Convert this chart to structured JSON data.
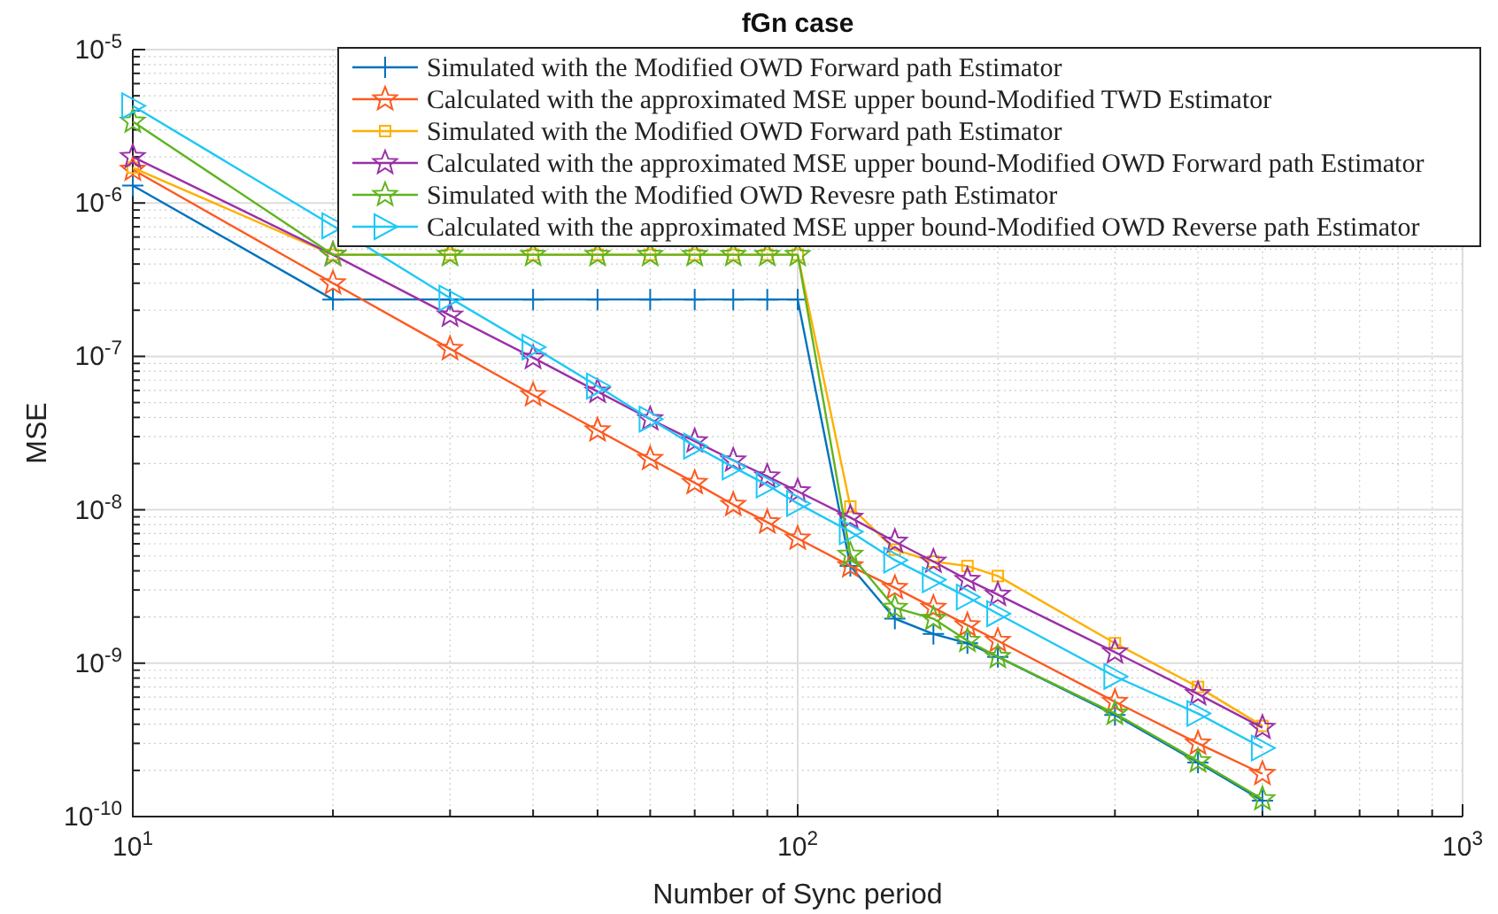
{
  "chart_data": {
    "type": "line",
    "title": "fGn case",
    "xlabel": "Number of Sync period",
    "ylabel": "MSE",
    "x": [
      10,
      20,
      30,
      40,
      50,
      60,
      70,
      80,
      90,
      100,
      120,
      140,
      160,
      180,
      200,
      300,
      400,
      500
    ],
    "series": [
      {
        "name": "Simulated with the Modified OWD Forward path Estimator",
        "color": "#0072bd",
        "marker": "cross",
        "values": [
          1.3e-06,
          2.35e-07,
          2.35e-07,
          2.35e-07,
          2.35e-07,
          2.35e-07,
          2.35e-07,
          2.35e-07,
          2.35e-07,
          2.35e-07,
          4.3e-09,
          1.95e-09,
          1.55e-09,
          1.35e-09,
          1.1e-09,
          4.6e-10,
          2.25e-10,
          1.27e-10
        ]
      },
      {
        "name": "Calculated with the approximated MSE upper bound-Modified TWD Estimator",
        "color": "#fc5a20",
        "marker": "star",
        "values": [
          1.65e-06,
          3e-07,
          1.12e-07,
          5.6e-08,
          3.3e-08,
          2.15e-08,
          1.5e-08,
          1.08e-08,
          8.3e-09,
          6.5e-09,
          4.3e-09,
          3.1e-09,
          2.3e-09,
          1.77e-09,
          1.4e-09,
          5.6e-10,
          3e-10,
          1.9e-10
        ]
      },
      {
        "name": "Simulated with the Modified OWD Forward path Estimator",
        "color": "#ffb000",
        "marker": "square",
        "values": [
          1.7e-06,
          4.6e-07,
          4.6e-07,
          4.6e-07,
          4.6e-07,
          4.6e-07,
          4.6e-07,
          4.6e-07,
          4.6e-07,
          4.6e-07,
          1.05e-08,
          5.5e-09,
          4.6e-09,
          4.3e-09,
          3.7e-09,
          1.35e-09,
          7e-10,
          3.9e-10
        ]
      },
      {
        "name": "Calculated with the approximated MSE upper bound-Modified OWD Forward path Estimator",
        "color": "#9b30a8",
        "marker": "star",
        "values": [
          2e-06,
          4.6e-07,
          1.85e-07,
          9.8e-08,
          5.9e-08,
          3.9e-08,
          2.8e-08,
          2.1e-08,
          1.65e-08,
          1.32e-08,
          8.9e-09,
          6.2e-09,
          4.6e-09,
          3.5e-09,
          2.8e-09,
          1.18e-09,
          6.3e-10,
          3.8e-10
        ]
      },
      {
        "name": "Simulated with the Modified OWD Revesre path Estimator",
        "color": "#5fb41e",
        "marker": "star",
        "values": [
          3.4e-06,
          4.6e-07,
          4.6e-07,
          4.6e-07,
          4.6e-07,
          4.6e-07,
          4.6e-07,
          4.6e-07,
          4.6e-07,
          4.6e-07,
          5.1e-09,
          2.3e-09,
          1.95e-09,
          1.4e-09,
          1.1e-09,
          4.7e-10,
          2.3e-10,
          1.3e-10
        ]
      },
      {
        "name": "Calculated with the approximated MSE upper bound-Modified OWD Reverse path Estimator",
        "color": "#1ec8f5",
        "marker": "triangle",
        "values": [
          4.3e-06,
          7.1e-07,
          2.4e-07,
          1.15e-07,
          6.4e-08,
          3.9e-08,
          2.6e-08,
          1.9e-08,
          1.45e-08,
          1.1e-08,
          7.2e-09,
          4.7e-09,
          3.5e-09,
          2.7e-09,
          2.1e-09,
          8.2e-10,
          4.7e-10,
          2.8e-10
        ]
      }
    ],
    "log": "xy",
    "xlim": [
      10,
      1000
    ],
    "ylim": [
      1e-10,
      1e-05
    ],
    "xticks": [
      {
        "value": 10,
        "label": "10$^{1}$"
      },
      {
        "value": 100,
        "label": "10$^{2}$"
      },
      {
        "value": 1000,
        "label": "10$^{3}$"
      }
    ],
    "yticks": [
      {
        "value": 1e-10,
        "label": "10$^{-10}$"
      },
      {
        "value": 1e-09,
        "label": "10$^{-9}$"
      },
      {
        "value": 1e-08,
        "label": "10$^{-8}$"
      },
      {
        "value": 1e-07,
        "label": "10$^{-7}$"
      },
      {
        "value": 1e-06,
        "label": "10$^{-6}$"
      },
      {
        "value": 1e-05,
        "label": "10$^{-5}$"
      }
    ],
    "grid": true,
    "legend": "top right"
  }
}
